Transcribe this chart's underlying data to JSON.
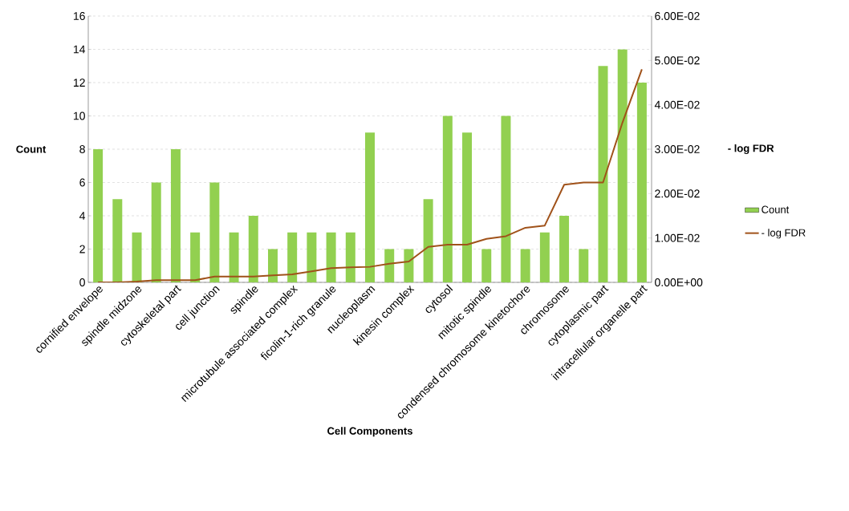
{
  "chart_data": {
    "type": "bar",
    "xlabel": "Cell Components",
    "ylabel": "Count",
    "y2label": "- log FDR",
    "categories": [
      "cornified envelope",
      null,
      "spindle midzone",
      null,
      "cytoskeletal part",
      null,
      "cell junction",
      null,
      "spindle",
      null,
      "microtubule associated complex",
      null,
      "ficolin-1-rich granule",
      null,
      "nucleoplasm",
      null,
      "kinesin complex",
      null,
      "cytosol",
      null,
      "mitotic spindle",
      null,
      "condensed chromosome kinetochore",
      null,
      "chromosome",
      null,
      "cytoplasmic part",
      null,
      "intracellular organelle part"
    ],
    "series": [
      {
        "name": "Count",
        "color": "#92d050",
        "values": [
          8,
          5,
          3,
          6,
          8,
          3,
          6,
          3,
          4,
          2,
          3,
          3,
          3,
          3,
          9,
          2,
          2,
          5,
          10,
          9,
          2,
          10,
          2,
          3,
          4,
          2,
          13,
          14,
          12
        ]
      },
      {
        "name": "- log FDR",
        "type": "line",
        "axis": "y2",
        "color": "#a0521a",
        "values": [
          0,
          0,
          0.0002,
          0.0005,
          0.0005,
          0.0005,
          0.0013,
          0.0013,
          0.0013,
          0.0016,
          0.0018,
          0.0025,
          0.0032,
          0.0034,
          0.0035,
          0.0042,
          0.0047,
          0.008,
          0.0085,
          0.0085,
          0.0098,
          0.0104,
          0.0123,
          0.0128,
          0.022,
          0.0225,
          0.0225,
          0.036,
          0.048
        ]
      }
    ],
    "ylim": [
      0,
      16
    ],
    "yticks": [
      0,
      2,
      4,
      6,
      8,
      10,
      12,
      14,
      16
    ],
    "y2lim": [
      0,
      0.06
    ],
    "y2ticks": [
      {
        "value": 0,
        "label": "0.00E+00"
      },
      {
        "value": 0.01,
        "label": "1.00E-02"
      },
      {
        "value": 0.02,
        "label": "2.00E-02"
      },
      {
        "value": 0.03,
        "label": "3.00E-02"
      },
      {
        "value": 0.04,
        "label": "4.00E-02"
      },
      {
        "value": 0.05,
        "label": "5.00E-02"
      },
      {
        "value": 0.06,
        "label": "6.00E-02"
      }
    ],
    "grid": "y",
    "legend": "right"
  }
}
